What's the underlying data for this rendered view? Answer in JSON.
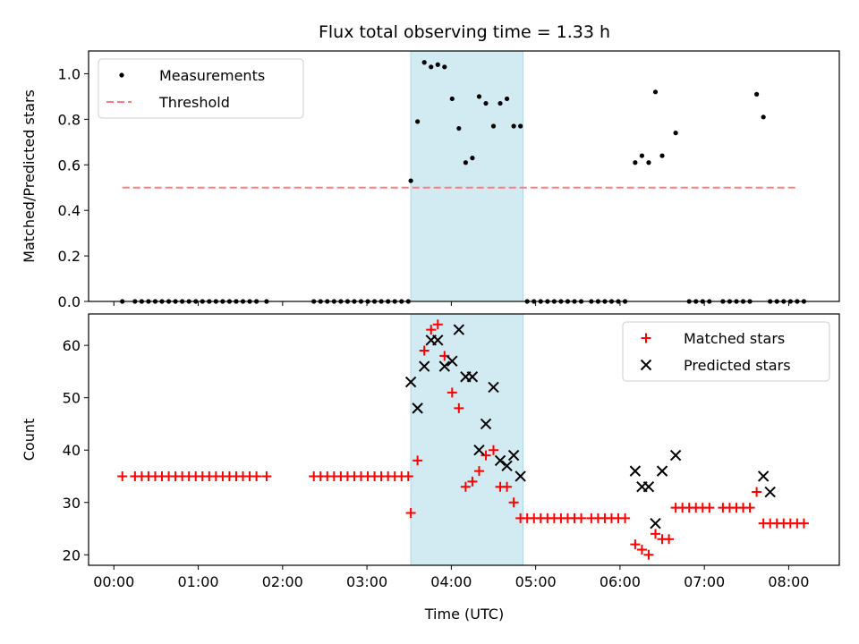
{
  "chart_data": {
    "title": "Flux total observing time = 1.33 h",
    "xlabel": "Time (UTC)",
    "x_unit": "hours since 00:00 UTC",
    "xlim": [
      -0.3,
      8.6
    ],
    "x_ticks": [
      0,
      1,
      2,
      3,
      4,
      5,
      6,
      7,
      8
    ],
    "x_tick_labels": [
      "00:00",
      "01:00",
      "02:00",
      "03:00",
      "04:00",
      "05:00",
      "06:00",
      "07:00",
      "08:00"
    ],
    "shaded_region": {
      "x": [
        3.52,
        4.85
      ],
      "color": "#add8e6"
    },
    "panels": [
      {
        "type": "scatter",
        "ylabel": "Matched/Predicted stars",
        "ylim": [
          0,
          1.1
        ],
        "y_ticks": [
          0.0,
          0.2,
          0.4,
          0.6,
          0.8,
          1.0
        ],
        "y_tick_labels": [
          "0.0",
          "0.2",
          "0.4",
          "0.6",
          "0.8",
          "1.0"
        ],
        "legend_position": "top-left",
        "series": [
          {
            "name": "Measurements",
            "marker": "dot",
            "color": "#000000",
            "x": [
              0.1,
              0.25,
              0.33,
              0.41,
              0.49,
              0.57,
              0.65,
              0.73,
              0.81,
              0.89,
              0.97,
              1.05,
              1.13,
              1.21,
              1.29,
              1.37,
              1.45,
              1.53,
              1.61,
              1.69,
              1.81,
              2.37,
              2.45,
              2.53,
              2.61,
              2.69,
              2.77,
              2.85,
              2.93,
              3.01,
              3.09,
              3.17,
              3.25,
              3.33,
              3.41,
              3.49,
              3.52,
              3.6,
              3.68,
              3.76,
              3.84,
              3.92,
              4.01,
              4.09,
              4.17,
              4.25,
              4.33,
              4.41,
              4.5,
              4.58,
              4.66,
              4.74,
              4.82,
              4.9,
              4.98,
              5.06,
              5.14,
              5.22,
              5.3,
              5.38,
              5.46,
              5.54,
              5.66,
              5.74,
              5.82,
              5.9,
              5.98,
              6.06,
              6.18,
              6.26,
              6.34,
              6.42,
              6.5,
              6.66,
              6.82,
              6.9,
              6.98,
              7.06,
              7.22,
              7.3,
              7.38,
              7.46,
              7.54,
              7.62,
              7.7,
              7.78,
              7.86,
              7.94,
              8.02,
              8.1,
              8.18
            ],
            "y": [
              0,
              0,
              0,
              0,
              0,
              0,
              0,
              0,
              0,
              0,
              0,
              0,
              0,
              0,
              0,
              0,
              0,
              0,
              0,
              0,
              0,
              0,
              0,
              0,
              0,
              0,
              0,
              0,
              0,
              0,
              0,
              0,
              0,
              0,
              0,
              0,
              0.53,
              0.79,
              1.05,
              1.03,
              1.04,
              1.03,
              0.89,
              0.76,
              0.61,
              0.63,
              0.9,
              0.87,
              0.77,
              0.87,
              0.89,
              0.77,
              0.77,
              0,
              0,
              0,
              0,
              0,
              0,
              0,
              0,
              0,
              0,
              0,
              0,
              0,
              0,
              0,
              0.61,
              0.64,
              0.61,
              0.92,
              0.64,
              0.74,
              0,
              0,
              0,
              0,
              0,
              0,
              0,
              0,
              0,
              0.91,
              0.81,
              0,
              0,
              0,
              0,
              0,
              0
            ]
          },
          {
            "name": "Threshold",
            "type": "line",
            "style": "dashed",
            "color": "#ff7b7b",
            "x": [
              0.1,
              8.1
            ],
            "y": [
              0.5,
              0.5
            ]
          }
        ]
      },
      {
        "type": "scatter",
        "ylabel": "Count",
        "ylim": [
          18,
          66
        ],
        "y_ticks": [
          20,
          30,
          40,
          50,
          60
        ],
        "y_tick_labels": [
          "20",
          "30",
          "40",
          "50",
          "60"
        ],
        "legend_position": "top-right",
        "series": [
          {
            "name": "Matched stars",
            "marker": "plus",
            "color": "#ff0000",
            "x": [
              0.1,
              0.25,
              0.33,
              0.41,
              0.49,
              0.57,
              0.65,
              0.73,
              0.81,
              0.89,
              0.97,
              1.05,
              1.13,
              1.21,
              1.29,
              1.37,
              1.45,
              1.53,
              1.61,
              1.69,
              1.81,
              2.37,
              2.45,
              2.53,
              2.61,
              2.69,
              2.77,
              2.85,
              2.93,
              3.01,
              3.09,
              3.17,
              3.25,
              3.33,
              3.41,
              3.49,
              3.52,
              3.6,
              3.68,
              3.76,
              3.84,
              3.92,
              4.01,
              4.09,
              4.17,
              4.25,
              4.33,
              4.41,
              4.5,
              4.58,
              4.66,
              4.74,
              4.82,
              4.9,
              4.98,
              5.06,
              5.14,
              5.22,
              5.3,
              5.38,
              5.46,
              5.54,
              5.66,
              5.74,
              5.82,
              5.9,
              5.98,
              6.06,
              6.18,
              6.26,
              6.34,
              6.42,
              6.5,
              6.58,
              6.66,
              6.74,
              6.82,
              6.9,
              6.98,
              7.06,
              7.22,
              7.3,
              7.38,
              7.46,
              7.54,
              7.62,
              7.7,
              7.78,
              7.86,
              7.94,
              8.02,
              8.1,
              8.18
            ],
            "y": [
              35,
              35,
              35,
              35,
              35,
              35,
              35,
              35,
              35,
              35,
              35,
              35,
              35,
              35,
              35,
              35,
              35,
              35,
              35,
              35,
              35,
              35,
              35,
              35,
              35,
              35,
              35,
              35,
              35,
              35,
              35,
              35,
              35,
              35,
              35,
              35,
              28,
              38,
              59,
              63,
              64,
              58,
              51,
              48,
              33,
              34,
              36,
              39,
              40,
              33,
              33,
              30,
              27,
              27,
              27,
              27,
              27,
              27,
              27,
              27,
              27,
              27,
              27,
              27,
              27,
              27,
              27,
              27,
              22,
              21,
              20,
              24,
              23,
              23,
              29,
              29,
              29,
              29,
              29,
              29,
              29,
              29,
              29,
              29,
              29,
              32,
              26,
              26,
              26,
              26,
              26,
              26,
              26
            ]
          },
          {
            "name": "Predicted stars",
            "marker": "x",
            "color": "#000000",
            "x": [
              3.52,
              3.6,
              3.68,
              3.76,
              3.84,
              3.92,
              4.01,
              4.09,
              4.17,
              4.25,
              4.33,
              4.41,
              4.5,
              4.58,
              4.66,
              4.74,
              4.82,
              6.18,
              6.26,
              6.34,
              6.42,
              6.5,
              6.66,
              7.7,
              7.78
            ],
            "y": [
              53,
              48,
              56,
              61,
              61,
              56,
              57,
              63,
              54,
              54,
              40,
              45,
              52,
              38,
              37,
              39,
              35,
              36,
              33,
              33,
              26,
              36,
              39,
              35,
              32
            ]
          }
        ]
      }
    ]
  }
}
